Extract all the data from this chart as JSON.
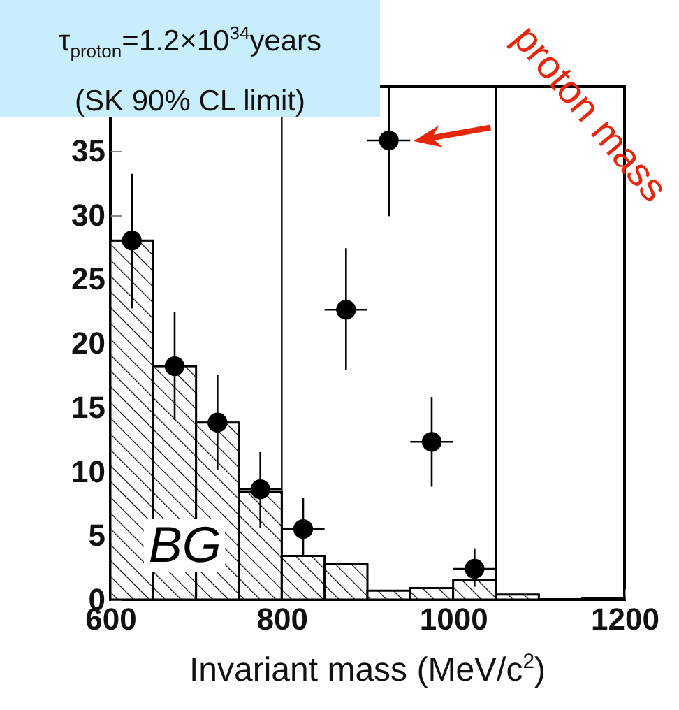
{
  "chart_data": {
    "type": "histogram",
    "xlabel": "Invariant mass (MeV/c$^{2}$)",
    "xlim": [
      600,
      1200
    ],
    "xticks": [
      600,
      800,
      1000,
      1200
    ],
    "ylim": [
      0,
      40
    ],
    "yticks": [
      0,
      5,
      10,
      15,
      20,
      25,
      30,
      35
    ],
    "series": [
      {
        "name": "BG",
        "color": "#000000",
        "bins": [
          600,
          650,
          700,
          750,
          800,
          850,
          900,
          950,
          1000,
          1050,
          1100,
          1150,
          1200
        ],
        "values": [
          28,
          18.2,
          13.8,
          8.4,
          3.4,
          2.8,
          0.7,
          0.9,
          1.5,
          0.4,
          0,
          0.1
        ]
      },
      {
        "type": "scatter",
        "color": "#000000",
        "x": [
          625,
          675,
          725,
          775,
          825,
          875,
          925,
          975,
          1025
        ],
        "values": [
          28,
          18.2,
          13.8,
          8.6,
          5.5,
          22.6,
          35.8,
          12.3,
          2.4
        ],
        "errors": [
          [
            22.7,
            33.2
          ],
          [
            14,
            22.4
          ],
          [
            10.1,
            17.5
          ],
          [
            5.6,
            11.5
          ],
          [
            3.4,
            7.9
          ],
          [
            17.9,
            27.4
          ],
          [
            29.9,
            40
          ],
          [
            8.8,
            15.8
          ],
          [
            1.0,
            4.0
          ]
        ],
        "xerrors": [
          25,
          25,
          25,
          25,
          25,
          25,
          25,
          25,
          25
        ]
      }
    ],
    "ref_lines": [
      {
        "axis": "x",
        "value": 800,
        "color": "#000000"
      },
      {
        "axis": "x",
        "value": 1050,
        "color": "#000000"
      }
    ],
    "marker": "circle",
    "grid": false,
    "annotations": [
      "τ$_{proton}$=1.2×10$^{34}$years",
      "(SK 90% CL limit)",
      {
        "text": "proton mass",
        "x": 925,
        "y": 36
      }
    ]
  }
}
